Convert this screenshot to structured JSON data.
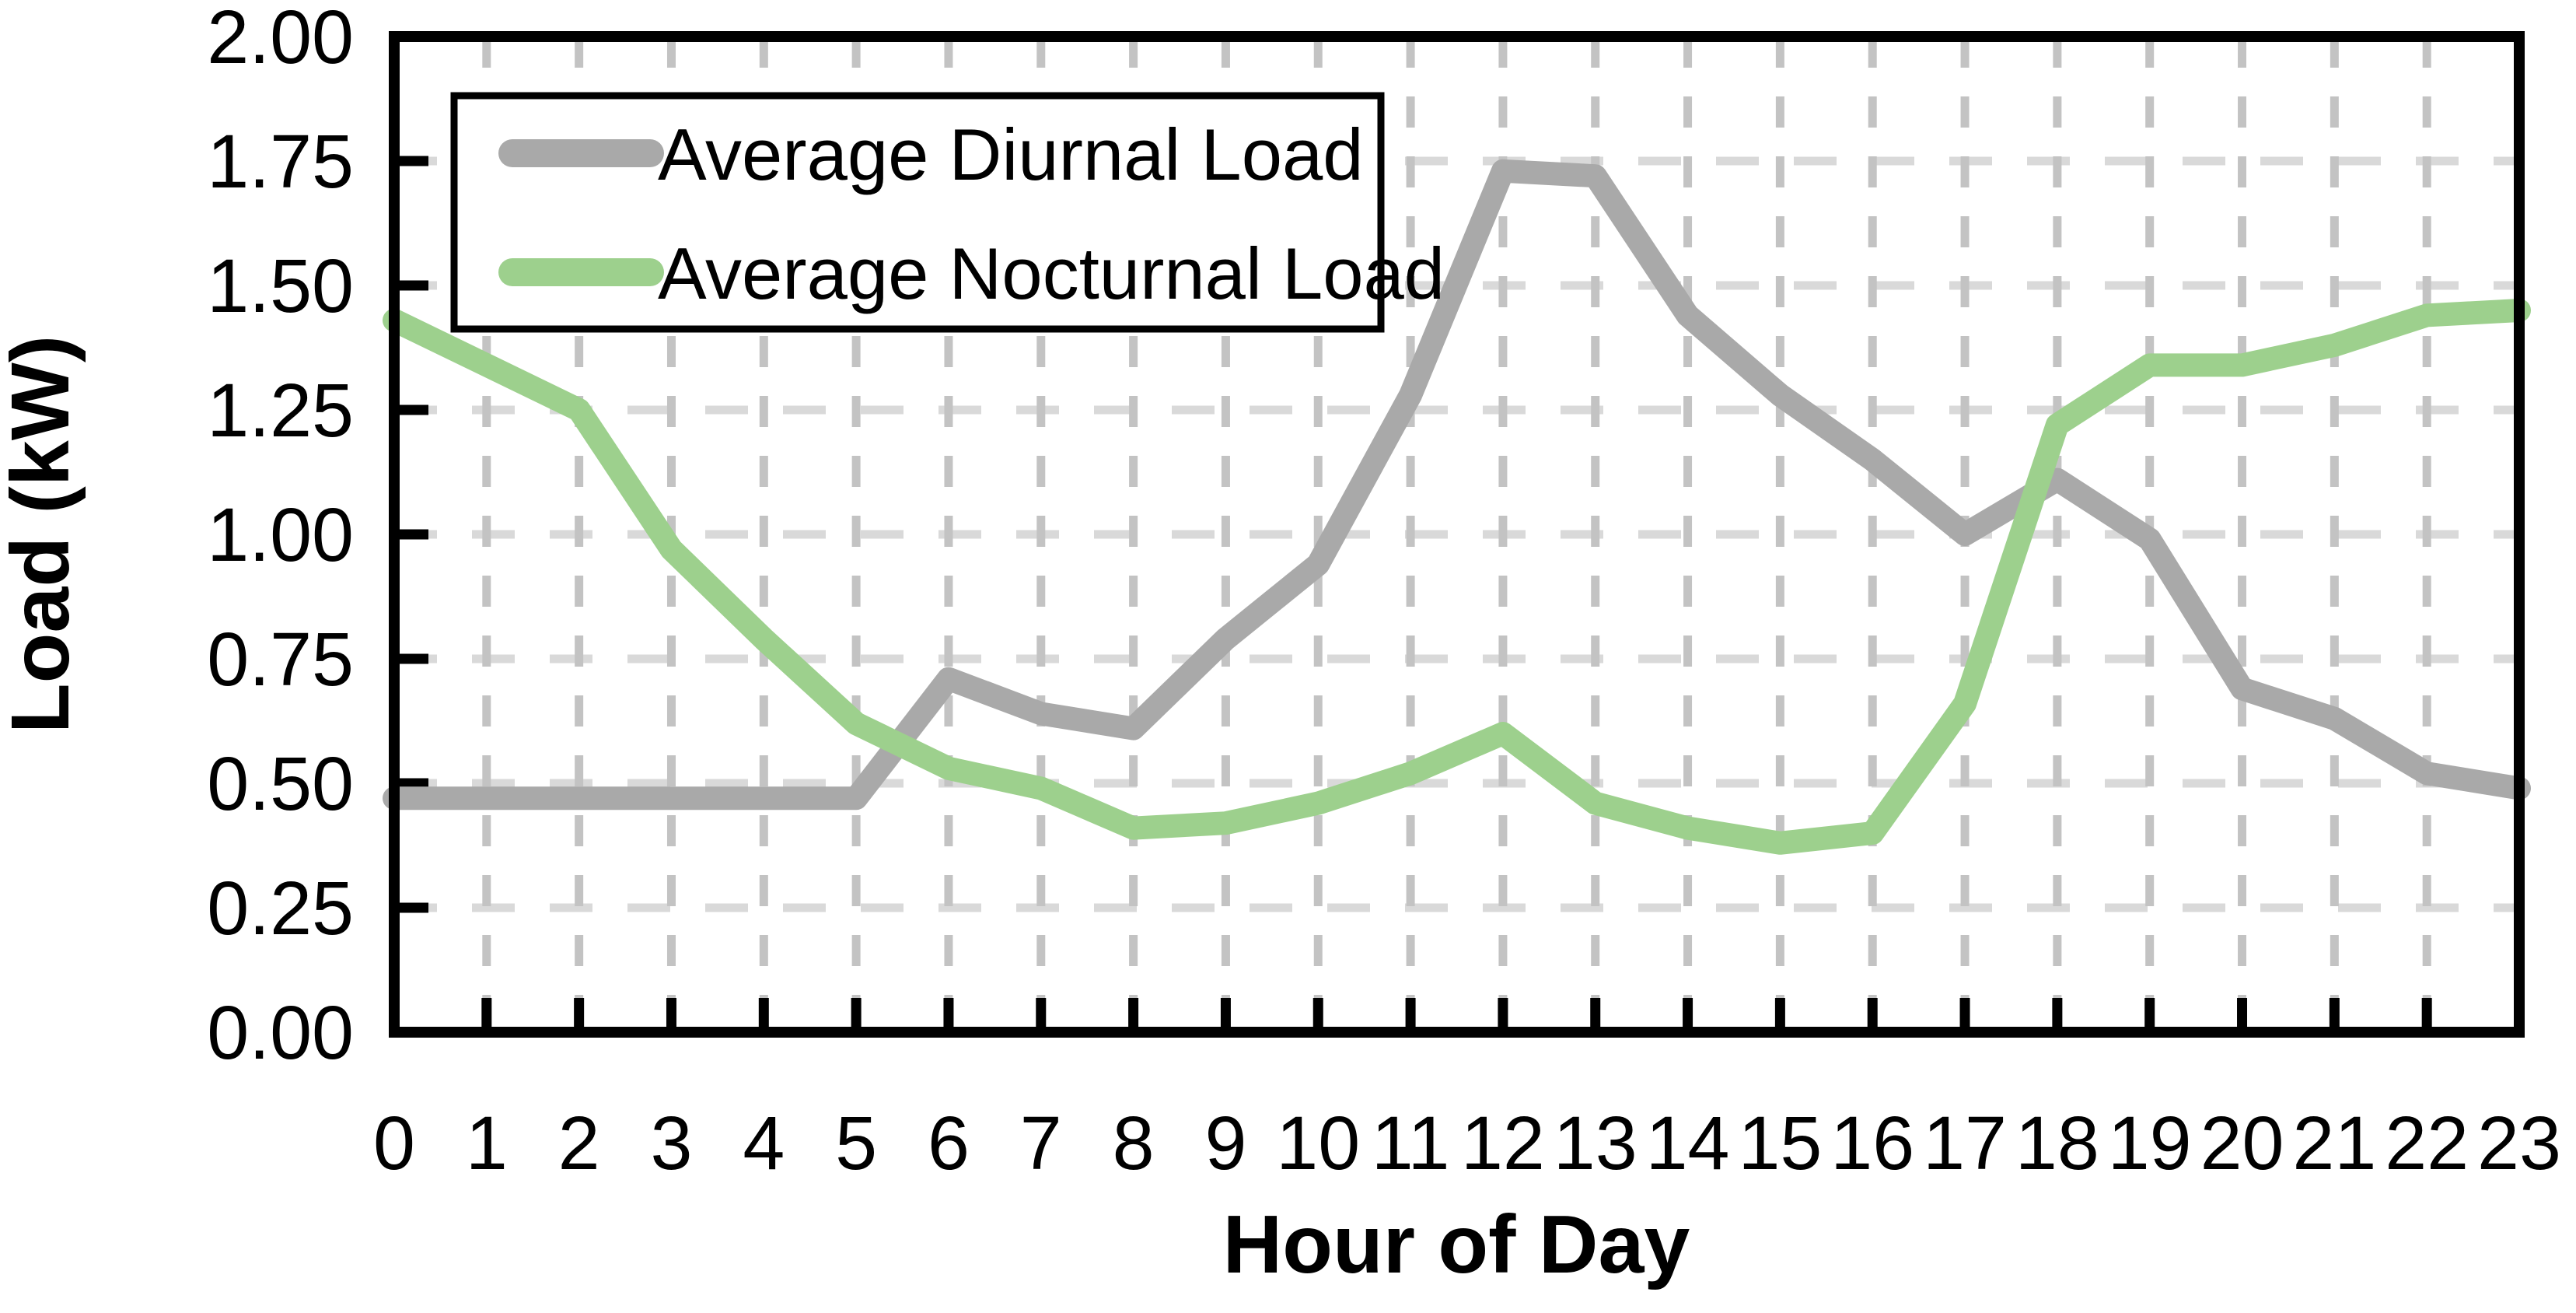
{
  "figure": {
    "background": "#FFFFFF",
    "border_color": "#000000"
  },
  "chart_data": {
    "type": "line",
    "title": "",
    "xlabel": "Hour of Day",
    "ylabel": "Load (kW)",
    "x": [
      0,
      1,
      2,
      3,
      4,
      5,
      6,
      7,
      8,
      9,
      10,
      11,
      12,
      13,
      14,
      15,
      16,
      17,
      18,
      19,
      20,
      21,
      22,
      23
    ],
    "x_tick_labels": [
      "0",
      "1",
      "2",
      "3",
      "4",
      "5",
      "6",
      "7",
      "8",
      "9",
      "10",
      "11",
      "12",
      "13",
      "14",
      "15",
      "16",
      "17",
      "18",
      "19",
      "20",
      "21",
      "22",
      "23"
    ],
    "series": [
      {
        "name": "Average Diurnal Load",
        "color": "#A9A9A9",
        "values": [
          0.47,
          0.47,
          0.47,
          0.47,
          0.47,
          0.47,
          0.71,
          0.64,
          0.61,
          0.79,
          0.94,
          1.28,
          1.73,
          1.72,
          1.44,
          1.28,
          1.15,
          1.0,
          1.11,
          0.99,
          0.69,
          0.63,
          0.52,
          0.49
        ]
      },
      {
        "name": "Average Nocturnal Load",
        "color": "#9DD08D",
        "values": [
          1.43,
          1.34,
          1.25,
          0.97,
          0.79,
          0.62,
          0.53,
          0.49,
          0.41,
          0.42,
          0.46,
          0.52,
          0.6,
          0.46,
          0.41,
          0.38,
          0.4,
          0.66,
          1.22,
          1.34,
          1.34,
          1.38,
          1.44,
          1.45
        ]
      }
    ],
    "ylim": [
      0.0,
      2.0
    ],
    "ytick_step": 0.25,
    "y_tick_labels": [
      "0.00",
      "0.25",
      "0.50",
      "0.75",
      "1.00",
      "1.25",
      "1.50",
      "1.75",
      "2.00"
    ],
    "grid": "dashed",
    "grid_h_color": "#D9D9D9",
    "grid_v_color": "#C3C3C3",
    "legend_position": "top-left",
    "line_width": 30
  }
}
